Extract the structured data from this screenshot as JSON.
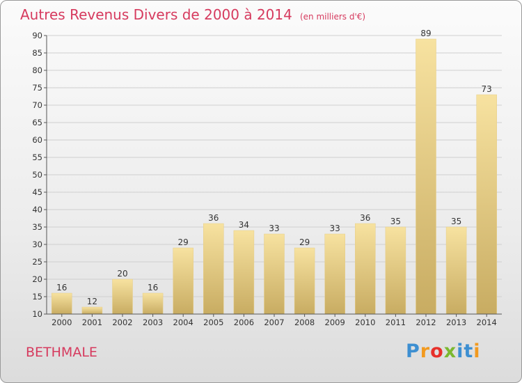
{
  "header": {
    "title": "Autres Revenus Divers de 2000 à 2014",
    "subtitle": "(en milliers d'€)"
  },
  "footer": {
    "commune": "BETHMALE",
    "logo_text": "Proxiti"
  },
  "colors": {
    "title": "#d63a5e",
    "bar_light": "#f7e2a0",
    "bar_dark": "#c8ac62",
    "grid": "#cfcfcf",
    "axis": "#555555"
  },
  "chart_data": {
    "type": "bar",
    "categories": [
      "2000",
      "2001",
      "2002",
      "2003",
      "2004",
      "2005",
      "2006",
      "2007",
      "2008",
      "2009",
      "2010",
      "2011",
      "2012",
      "2013",
      "2014"
    ],
    "values": [
      16,
      12,
      20,
      16,
      29,
      36,
      34,
      33,
      29,
      33,
      36,
      35,
      89,
      35,
      73
    ],
    "data_labels": [
      "16",
      "12",
      "20",
      "16",
      "29",
      "36",
      "34",
      "33",
      "29",
      "33",
      "36",
      "35",
      "89",
      "35",
      "73"
    ],
    "ylim": [
      10,
      90
    ],
    "yticks": [
      10,
      15,
      20,
      25,
      30,
      35,
      40,
      45,
      50,
      55,
      60,
      65,
      70,
      75,
      80,
      85,
      90
    ],
    "grid": true,
    "xlabel": "",
    "ylabel": ""
  }
}
